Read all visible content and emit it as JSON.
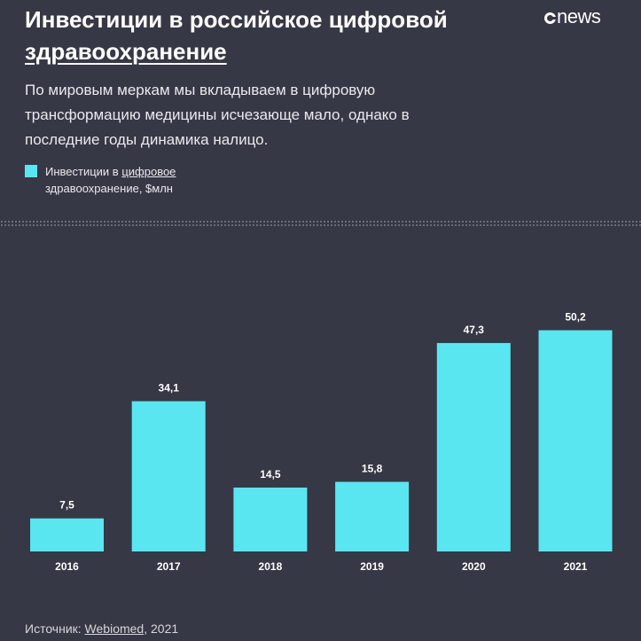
{
  "title": {
    "line1": "Инвестиции в российское цифровой",
    "line2": "здравоохранение"
  },
  "logo": {
    "text": "news",
    "icon": "cnews-c-icon"
  },
  "subtitle": "По мировым меркам мы вкладываем в цифровую трансформацию медицины исчезающе мало, однако в последние годы динамика налицо.",
  "legend": {
    "prefix": "Инвестиции в ",
    "link": "цифровое",
    "rest": "здравоохранение, $млн"
  },
  "colors": {
    "background": "#363846",
    "bar": "#5ae6f0"
  },
  "chart_data": {
    "type": "bar",
    "categories": [
      "2016",
      "2017",
      "2018",
      "2019",
      "2020",
      "2021"
    ],
    "values": [
      7.5,
      34.1,
      14.5,
      15.8,
      47.3,
      50.2
    ],
    "value_labels": [
      "7,5",
      "34,1",
      "14,5",
      "15,8",
      "47,3",
      "50,2"
    ],
    "series": [
      {
        "name": "Инвестиции в цифровое здравоохранение, $млн",
        "values": [
          7.5,
          34.1,
          14.5,
          15.8,
          47.3,
          50.2
        ]
      }
    ],
    "grid": false,
    "legend_position": "top-left"
  },
  "source": {
    "prefix": "Источник: ",
    "link": "Webiomed",
    "suffix": ", 2021"
  }
}
